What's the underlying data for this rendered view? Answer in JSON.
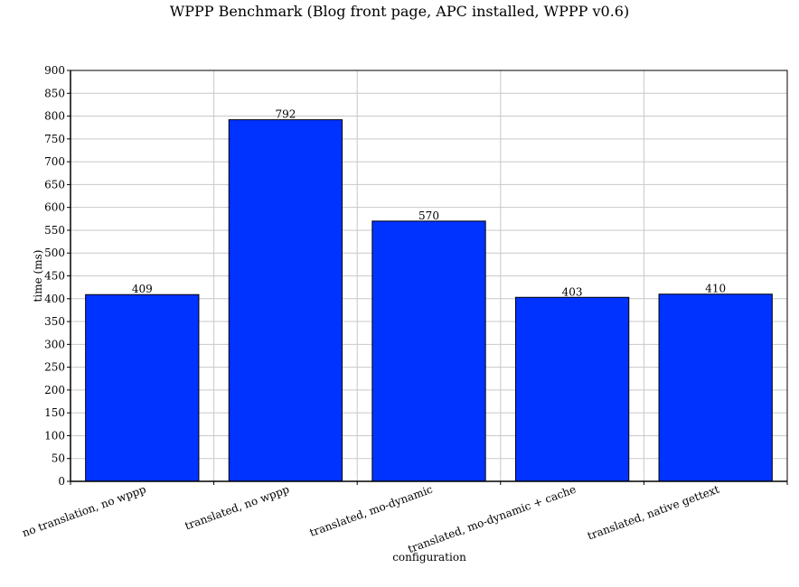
{
  "chart_data": {
    "type": "bar",
    "title": "WPPP Benchmark (Blog front page, APC installed, WPPP v0.6)",
    "xlabel": "configuration",
    "ylabel": "time (ms)",
    "categories": [
      "no translation, no wppp",
      "translated, no wppp",
      "translated, mo-dynamic",
      "translated, mo-dynamic + cache",
      "translated, native gettext"
    ],
    "values": [
      409,
      792,
      570,
      403,
      410
    ],
    "ylim": [
      0,
      900
    ],
    "y_ticks": [
      "0",
      "50",
      "100",
      "150",
      "200",
      "250",
      "300",
      "350",
      "400",
      "450",
      "500",
      "550",
      "600",
      "650",
      "700",
      "750",
      "800",
      "850",
      "900"
    ],
    "grid": true,
    "colors": {
      "bar": "#0033ff",
      "bar_outline": "#000000",
      "grid": "#c8c8c8"
    }
  }
}
